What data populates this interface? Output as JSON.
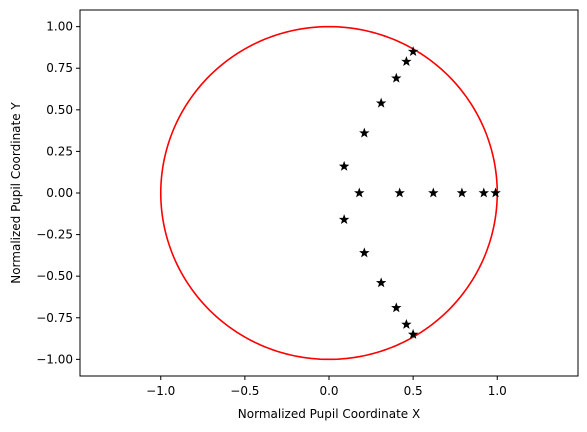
{
  "chart_data": {
    "type": "scatter",
    "xlabel": "Normalized Pupil Coordinate X",
    "ylabel": "Normalized Pupil Coordinate Y",
    "xlim": [
      -1.48,
      1.48
    ],
    "ylim": [
      -1.1,
      1.1
    ],
    "xticks": [
      {
        "value": -1.0,
        "label": "−1.0"
      },
      {
        "value": -0.5,
        "label": "−0.5"
      },
      {
        "value": 0.0,
        "label": "0.0"
      },
      {
        "value": 0.5,
        "label": "0.5"
      },
      {
        "value": 1.0,
        "label": "1.0"
      }
    ],
    "yticks": [
      {
        "value": -1.0,
        "label": "−1.00"
      },
      {
        "value": -0.75,
        "label": "−0.75"
      },
      {
        "value": -0.5,
        "label": "−0.50"
      },
      {
        "value": -0.25,
        "label": "−0.25"
      },
      {
        "value": 0.0,
        "label": "0.00"
      },
      {
        "value": 0.25,
        "label": "0.25"
      },
      {
        "value": 0.5,
        "label": "0.50"
      },
      {
        "value": 0.75,
        "label": "0.75"
      },
      {
        "value": 1.0,
        "label": "1.00"
      }
    ],
    "grid": false,
    "series": [
      {
        "type": "circle",
        "center": [
          0,
          0
        ],
        "radius": 1.0,
        "color": "#ff0000"
      },
      {
        "type": "scatter",
        "marker": "star",
        "color": "#000000",
        "points": [
          {
            "x": 0.18,
            "y": 0.0
          },
          {
            "x": 0.42,
            "y": 0.0
          },
          {
            "x": 0.62,
            "y": 0.0
          },
          {
            "x": 0.79,
            "y": 0.0
          },
          {
            "x": 0.92,
            "y": 0.0
          },
          {
            "x": 0.99,
            "y": 0.0
          },
          {
            "x": 0.09,
            "y": 0.16
          },
          {
            "x": 0.21,
            "y": 0.36
          },
          {
            "x": 0.31,
            "y": 0.54
          },
          {
            "x": 0.4,
            "y": 0.69
          },
          {
            "x": 0.46,
            "y": 0.79
          },
          {
            "x": 0.5,
            "y": 0.85
          },
          {
            "x": 0.09,
            "y": -0.16
          },
          {
            "x": 0.21,
            "y": -0.36
          },
          {
            "x": 0.31,
            "y": -0.54
          },
          {
            "x": 0.4,
            "y": -0.69
          },
          {
            "x": 0.46,
            "y": -0.79
          },
          {
            "x": 0.5,
            "y": -0.85
          }
        ]
      }
    ]
  }
}
